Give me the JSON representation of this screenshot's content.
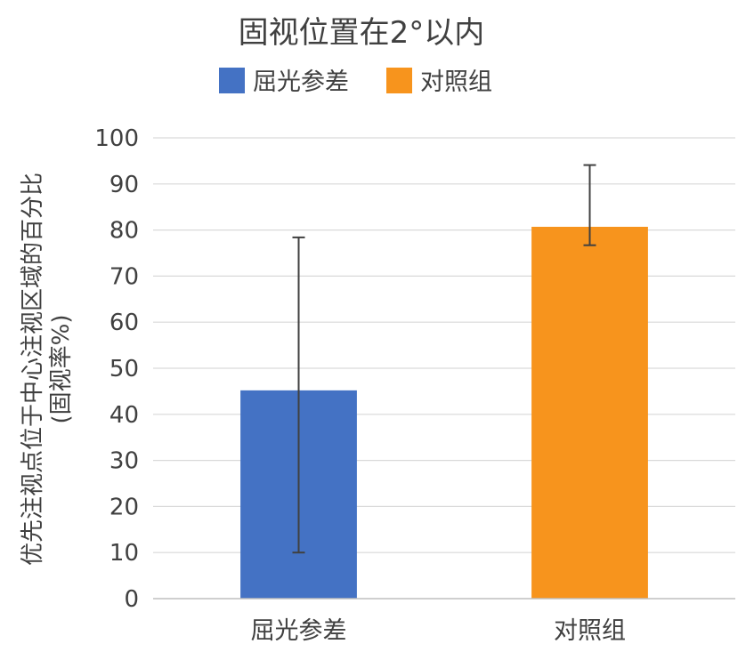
{
  "chart_data": {
    "type": "bar",
    "title": "固视位置在2°以内",
    "ylabel_line1": "优先注视点位于中心注视区域的百分比",
    "ylabel_line2": "(固视率%)",
    "xlabel": "",
    "ylim": [
      0,
      100
    ],
    "yticks": [
      0,
      10,
      20,
      30,
      40,
      50,
      60,
      70,
      80,
      90,
      100
    ],
    "categories": [
      "屈光参差",
      "对照组"
    ],
    "values": [
      45.2,
      80.7
    ],
    "error_low": [
      10.0,
      76.7
    ],
    "error_high": [
      78.4,
      94.1
    ],
    "colors": [
      "#4472c4",
      "#f7941d"
    ],
    "legend": {
      "placement": "top",
      "entries": [
        "屈光参差",
        "对照组"
      ]
    },
    "grid": true
  }
}
